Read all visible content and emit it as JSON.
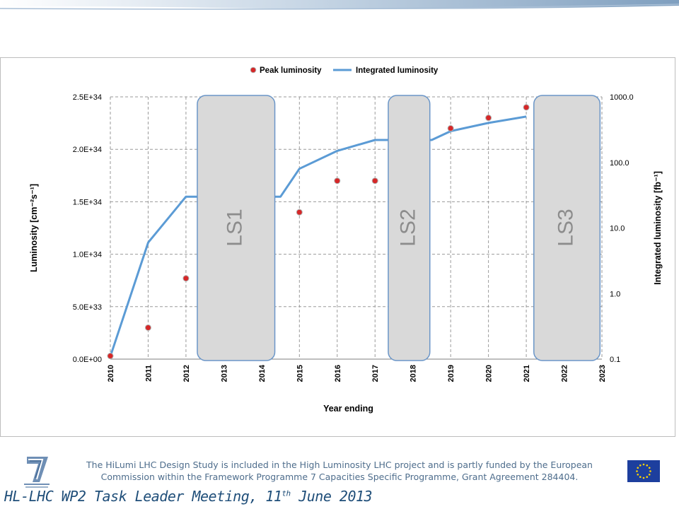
{
  "chart_data": {
    "type": "line",
    "xlabel": "Year ending",
    "ylabel_left": "Luminosity [cm⁻²s⁻¹]",
    "ylabel_right": "Integrated luminosity [fb⁻¹]",
    "x_ticks": [
      "2010",
      "2011",
      "2012",
      "2013",
      "2014",
      "2015",
      "2016",
      "2017",
      "2018",
      "2019",
      "2020",
      "2021",
      "2022",
      "2023"
    ],
    "y_left_ticks": [
      "0.0E+00",
      "5.0E+33",
      "1.0E+34",
      "1.5E+34",
      "2.0E+34",
      "2.5E+34"
    ],
    "y_left_lim": [
      0,
      2.5e+34
    ],
    "y_right_ticks": [
      "0.1",
      "1.0",
      "10.0",
      "100.0",
      "1000.0"
    ],
    "y_right_lim": [
      0.1,
      1000
    ],
    "y_right_scale": "log",
    "grid": true,
    "legend_position": "top",
    "series": [
      {
        "name": "Peak luminosity",
        "kind": "scatter",
        "axis": "left",
        "color": "#d62728",
        "points": [
          [
            2010,
            3e+32
          ],
          [
            2011,
            3e+33
          ],
          [
            2012,
            7.7e+33
          ],
          [
            2015,
            1.4e+34
          ],
          [
            2016,
            1.7e+34
          ],
          [
            2017,
            1.7e+34
          ],
          [
            2019,
            2.2e+34
          ],
          [
            2020,
            2.3e+34
          ],
          [
            2021,
            2.4e+34
          ]
        ]
      },
      {
        "name": "Integrated luminosity",
        "kind": "line",
        "axis": "right",
        "color": "#5b9bd5",
        "points": [
          [
            2010,
            0.11
          ],
          [
            2011,
            6
          ],
          [
            2012,
            30
          ],
          [
            2014.5,
            30
          ],
          [
            2015,
            80
          ],
          [
            2016,
            150
          ],
          [
            2017,
            220
          ],
          [
            2018.5,
            220
          ],
          [
            2019,
            300
          ],
          [
            2020,
            400
          ],
          [
            2021,
            500
          ]
        ]
      }
    ],
    "shutdowns": [
      {
        "label": "LS1",
        "from": 2012.3,
        "to": 2014.35
      },
      {
        "label": "LS2",
        "from": 2017.35,
        "to": 2018.45
      },
      {
        "label": "LS3",
        "from": 2021.2,
        "to": 2022.95
      }
    ]
  },
  "footer": {
    "note_line1": "The HiLumi LHC Design Study is included in the High Luminosity LHC project and is partly funded by the European",
    "note_line2": "Commission within the Framework Programme 7 Capacities Specific Programme, Grant Agreement 284404.",
    "meeting_title": "HL-LHC WP2 Task Leader Meeting, 11",
    "meeting_title_sup": "th",
    "meeting_title_end": " June 2013"
  },
  "colors": {
    "accent": "#5b9bd5",
    "peak": "#d62728",
    "shutdown_fill": "#d9d9d9",
    "shutdown_stroke": "#6b96c8"
  }
}
